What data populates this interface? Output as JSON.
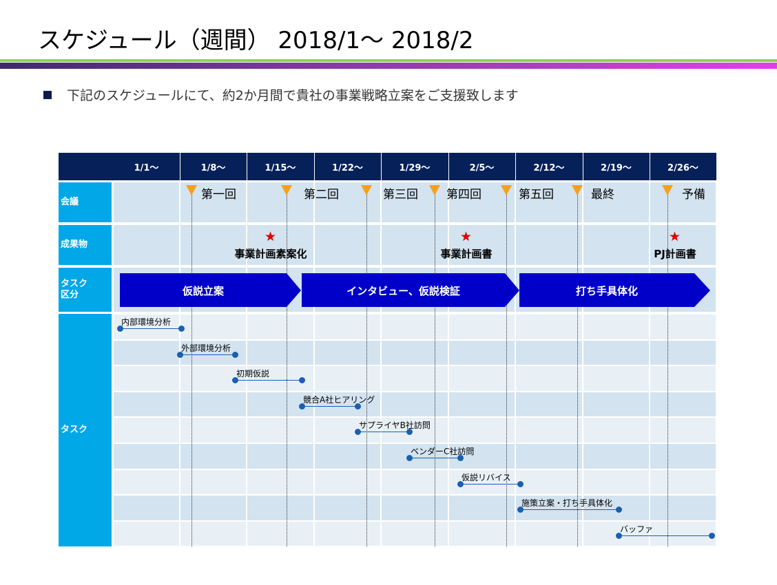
{
  "header": {
    "title": "スケジュール（週間）  2018/1～ 2018/2"
  },
  "intro": {
    "bullet": "下記のスケジュールにて、約2か月間で貴社の事業戦略立案をご支援致します"
  },
  "schedule": {
    "weeks": [
      "1/1～",
      "1/8～",
      "1/15～",
      "1/22～",
      "1/29～",
      "2/5～",
      "2/12～",
      "2/19～",
      "2/26～"
    ],
    "row_labels": {
      "meeting": "会議",
      "deliverable": "成果物",
      "phase": "タスク\n区分",
      "task": "タスク"
    },
    "meetings": [
      "第一回",
      "第二回",
      "第三回",
      "第四回",
      "第五回",
      "最終",
      "予備"
    ],
    "deliverables": [
      "事業計画素案化",
      "事業計画書",
      "PJ計画書"
    ],
    "phases": [
      "仮説立案",
      "インタビュー、仮説検証",
      "打ち手具体化"
    ],
    "tasks": [
      "内部環境分析",
      "外部環境分析",
      "初期仮説",
      "競合A社ヒアリング",
      "サプライヤB社訪問",
      "ベンダーC社訪問",
      "仮説リバイス",
      "施策立案・打ち手具体化",
      "バッファ"
    ]
  },
  "colors": {
    "header_bg": "#06215a",
    "label_bg": "#00a8e8",
    "phase_fill": "#0000c8",
    "meeting_marker": "#f5a11b",
    "star": "#e00000",
    "task_line": "#1a5fb0"
  }
}
